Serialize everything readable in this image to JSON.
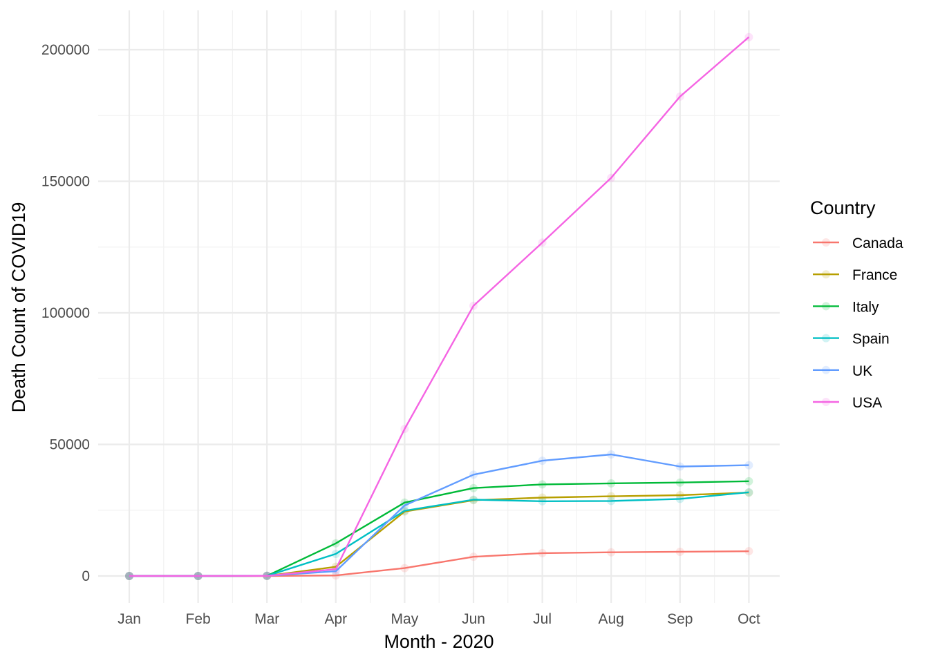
{
  "chart_data": {
    "type": "line",
    "title": "",
    "xlabel": "Month - 2020",
    "ylabel": "Death Count of COVID19",
    "categories": [
      "Jan",
      "Feb",
      "Mar",
      "Apr",
      "May",
      "Jun",
      "Jul",
      "Aug",
      "Sep",
      "Oct"
    ],
    "ylim": [
      -10000,
      215000
    ],
    "yticks": [
      0,
      50000,
      100000,
      150000,
      200000
    ],
    "grid": true,
    "legend_title": "Country",
    "legend_position": "right",
    "series": [
      {
        "name": "Canada",
        "color": "#F8766D",
        "values": [
          0,
          0,
          0,
          200,
          3000,
          7300,
          8700,
          9000,
          9200,
          9400
        ]
      },
      {
        "name": "France",
        "color": "#B79F00",
        "values": [
          0,
          0,
          50,
          3500,
          24500,
          28800,
          29800,
          30300,
          30700,
          31700
        ]
      },
      {
        "name": "Italy",
        "color": "#00BA38",
        "values": [
          0,
          0,
          50,
          12400,
          27900,
          33400,
          34800,
          35200,
          35500,
          36000
        ]
      },
      {
        "name": "Spain",
        "color": "#00BFC4",
        "values": [
          0,
          0,
          50,
          8400,
          24800,
          29000,
          28400,
          28500,
          29300,
          31800
        ]
      },
      {
        "name": "UK",
        "color": "#619CFF",
        "values": [
          0,
          0,
          50,
          1800,
          26800,
          38500,
          43800,
          46200,
          41600,
          42100
        ]
      },
      {
        "name": "USA",
        "color": "#F564E3",
        "values": [
          0,
          0,
          50,
          2600,
          55900,
          102700,
          126700,
          151300,
          182200,
          204800
        ]
      }
    ]
  }
}
